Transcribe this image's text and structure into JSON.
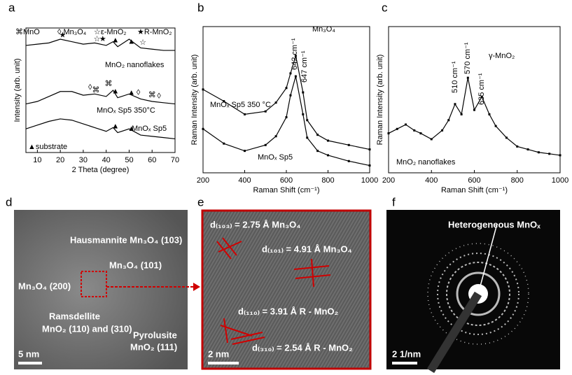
{
  "chart_data": [
    {
      "type": "line",
      "panel": "a",
      "xlabel": "2 Theta (degree)",
      "ylabel": "Intensity (arb. unit)",
      "xlim": [
        5,
        70
      ],
      "ylim": [
        0,
        10
      ],
      "xticks": [
        10,
        20,
        30,
        40,
        50,
        60,
        70
      ],
      "legend": [
        "⌘MnO",
        "◊ Mn₃O₄",
        "☆ε-MnO₂",
        "★R-MnO₂"
      ],
      "x": [
        5,
        10,
        15,
        20,
        25,
        30,
        35,
        40,
        43,
        45,
        50,
        55,
        60,
        65,
        70
      ],
      "series": [
        {
          "name": "MnO₂ nanoflakes",
          "color": "#000000",
          "values": [
            8.6,
            8.7,
            8.8,
            9.1,
            8.9,
            8.7,
            8.8,
            8.6,
            8.9,
            8.5,
            9.1,
            8.4,
            8.3,
            8.2,
            8.2
          ],
          "peaks": [
            {
              "symbol": "★",
              "x": 21
            },
            {
              "symbol": "☆",
              "x": 36
            },
            {
              "symbol": "★",
              "x": 38.5
            },
            {
              "symbol": "▲",
              "x": 44
            },
            {
              "symbol": "▲",
              "x": 51
            },
            {
              "symbol": "☆",
              "x": 56
            }
          ]
        },
        {
          "name": "MnOₓ Sp5 350°C",
          "color": "#000000",
          "values": [
            3.9,
            4.1,
            4.5,
            4.9,
            4.9,
            4.6,
            4.7,
            4.5,
            5.0,
            4.4,
            4.7,
            4.3,
            4.1,
            4.0,
            3.9
          ],
          "peaks": [
            {
              "symbol": "◊",
              "x": 33
            },
            {
              "symbol": "⌘",
              "x": 35.5
            },
            {
              "symbol": "▲",
              "x": 44
            },
            {
              "symbol": "⌘",
              "x": 41
            },
            {
              "symbol": "▲",
              "x": 51
            },
            {
              "symbol": "◊",
              "x": 54
            },
            {
              "symbol": "⌘",
              "x": 60
            },
            {
              "symbol": "◊",
              "x": 63
            }
          ]
        },
        {
          "name": "MnOₓ Sp5",
          "color": "#000000",
          "values": [
            1.9,
            2.2,
            2.5,
            2.7,
            2.6,
            2.3,
            2.0,
            1.7,
            2.0,
            1.6,
            1.9,
            1.4,
            1.3,
            1.2,
            1.1
          ],
          "peaks": [
            {
              "symbol": "▲",
              "x": 44
            },
            {
              "symbol": "▲",
              "x": 51
            }
          ]
        }
      ],
      "annotations": [
        "▲substrate"
      ]
    },
    {
      "type": "line",
      "panel": "b",
      "xlabel": "Raman Shift (cm⁻¹)",
      "ylabel": "Raman Intensity (arb. unit)",
      "xlim": [
        200,
        1000
      ],
      "ylim": [
        0,
        10
      ],
      "xticks": [
        200,
        400,
        600,
        800,
        1000
      ],
      "markers": true,
      "x": [
        200,
        300,
        400,
        500,
        550,
        600,
        620,
        645,
        680,
        700,
        750,
        800,
        900,
        1000
      ],
      "series": [
        {
          "name": "MnOₓ Sp5 350 °C",
          "color": "#000000",
          "values": [
            5.7,
            4.9,
            4.0,
            4.2,
            4.8,
            5.8,
            6.8,
            8.0,
            5.5,
            3.6,
            2.6,
            2.2,
            1.9,
            1.6
          ]
        },
        {
          "name": "MnOₓ Sp5",
          "color": "#000000",
          "values": [
            3.0,
            2.0,
            1.5,
            1.9,
            2.5,
            3.8,
            5.3,
            6.6,
            4.0,
            2.4,
            1.5,
            1.2,
            0.8,
            0.5
          ]
        }
      ],
      "annotations": [
        "642 cm⁻¹",
        "647 cm⁻¹",
        "Mn₃O₄"
      ]
    },
    {
      "type": "line",
      "panel": "c",
      "xlabel": "Raman Shift (cm⁻¹)",
      "ylabel": "Raman Intensity (arb. unit)",
      "xlim": [
        200,
        1000
      ],
      "ylim": [
        0,
        10
      ],
      "xticks": [
        200,
        400,
        600,
        800,
        1000
      ],
      "markers": true,
      "x": [
        200,
        240,
        280,
        320,
        350,
        400,
        450,
        480,
        510,
        540,
        570,
        600,
        635,
        670,
        700,
        750,
        800,
        850,
        900,
        950,
        1000
      ],
      "series": [
        {
          "name": "MnO₂ nanoflakes",
          "color": "#000000",
          "values": [
            2.7,
            3.0,
            3.3,
            2.9,
            2.7,
            2.3,
            2.9,
            3.6,
            4.7,
            4.0,
            6.5,
            4.3,
            5.2,
            4.0,
            3.2,
            2.4,
            1.8,
            1.6,
            1.4,
            1.3,
            1.2
          ]
        }
      ],
      "annotations": [
        "510 cm⁻¹",
        "570 cm⁻¹",
        "635 cm⁻¹",
        "γ-MnO₂"
      ]
    }
  ],
  "panels": [
    {
      "label": "d",
      "texts": [
        "Hausmannite Mn₃O₄ (103)",
        "Mn₃O₄ (101)",
        "Mn₃O₄ (200)",
        "Ramsdellite",
        "MnO₂ (110) and (310)",
        "Pyrolusite",
        "MnO₂ (111)"
      ],
      "scale_bar": "5 nm"
    },
    {
      "label": "e",
      "texts": [
        "d₍₁₀₃₎ = 2.75 Å Mn₃O₄",
        "d₍₁₀₁₎ = 4.91 Å Mn₃O₄",
        "d₍₁₁₀₎ = 3.91 Å R - MnO₂",
        "d₍₃₁₀₎ = 2.54 Å R - MnO₂"
      ],
      "scale_bar": "2 nm"
    },
    {
      "label": "f",
      "texts": [
        "Heterogeneous MnOₓ"
      ],
      "scale_bar": "2 1/nm"
    }
  ]
}
